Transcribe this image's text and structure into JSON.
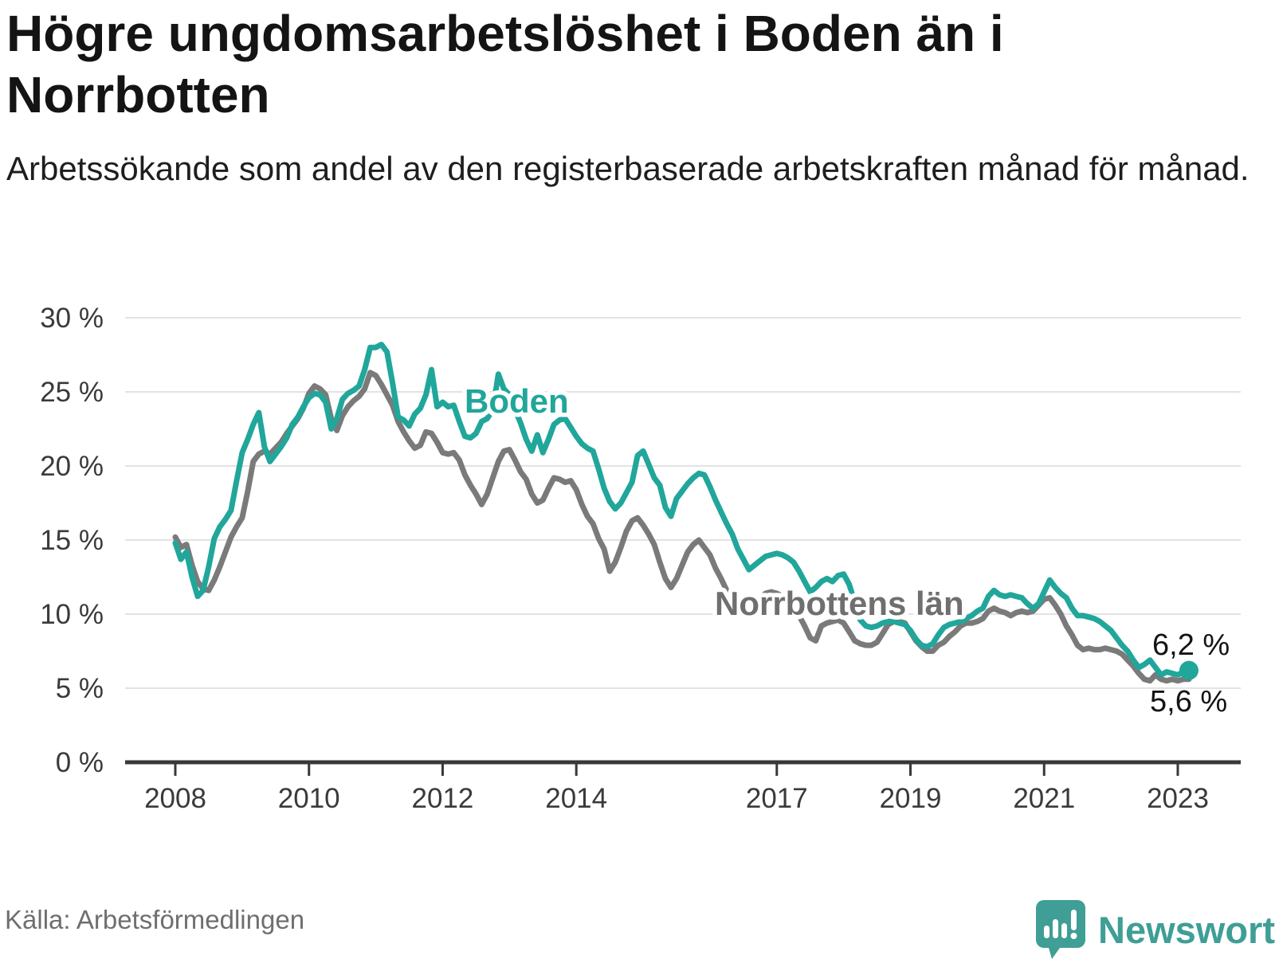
{
  "header": {
    "title": "Högre ungdomsarbetslöshet i Boden än i Norrbotten",
    "subtitle": "Arbetssökande som andel av den registerbaserade arbetskraften månad för månad."
  },
  "chart_data": {
    "type": "line",
    "title": "Högre ungdomsarbetslöshet i Boden än i Norrbotten",
    "subtitle": "Arbetssökande som andel av den registerbaserade arbetskraften månad för månad.",
    "x_unit": "month",
    "frequency": "monthly",
    "x_range": [
      "2008-01",
      "2023-03"
    ],
    "ylim": [
      0,
      30
    ],
    "grid": true,
    "legend_position": "inline-labels",
    "y_tick_labels": [
      "0 %",
      "5 %",
      "10 %",
      "15 %",
      "20 %",
      "25 %",
      "30 %"
    ],
    "x_tick_labels": [
      "2008",
      "2010",
      "2012",
      "2014",
      "2017",
      "2019",
      "2021",
      "2023"
    ],
    "x_tick_month_offsets": [
      0,
      24,
      48,
      72,
      108,
      132,
      156,
      180
    ],
    "series": [
      {
        "name": "Norrbottens län",
        "color": "#7a7a7a",
        "label_color": "#6f6f6f",
        "end_label": "5,6 %",
        "end_dot": false,
        "values": [
          15.2,
          14.5,
          14.7,
          13.3,
          12.2,
          11.7,
          11.6,
          12.3,
          13.2,
          14.2,
          15.2,
          15.9,
          16.5,
          18.3,
          20.3,
          20.8,
          21.0,
          20.8,
          21.2,
          21.6,
          22.2,
          22.7,
          23.2,
          23.9,
          24.9,
          25.4,
          25.2,
          24.8,
          23.2,
          22.4,
          23.4,
          24.0,
          24.4,
          24.7,
          25.2,
          26.3,
          26.1,
          25.5,
          24.8,
          24.1,
          23.0,
          22.3,
          21.7,
          21.2,
          21.4,
          22.3,
          22.2,
          21.6,
          20.9,
          20.8,
          20.9,
          20.4,
          19.4,
          18.7,
          18.1,
          17.4,
          18.1,
          19.2,
          20.3,
          21.0,
          21.1,
          20.4,
          19.6,
          19.1,
          18.1,
          17.5,
          17.7,
          18.5,
          19.2,
          19.1,
          18.9,
          19.0,
          18.4,
          17.4,
          16.6,
          16.1,
          15.1,
          14.4,
          12.9,
          13.5,
          14.5,
          15.6,
          16.3,
          16.5,
          16.0,
          15.4,
          14.7,
          13.5,
          12.4,
          11.8,
          12.4,
          13.3,
          14.2,
          14.7,
          15.0,
          14.5,
          14.0,
          13.1,
          12.4,
          11.6,
          10.8,
          10.3,
          10.1,
          10.3,
          10.8,
          11.1,
          11.4,
          11.5,
          11.4,
          11.2,
          10.9,
          10.3,
          9.9,
          9.2,
          8.4,
          8.2,
          9.2,
          9.4,
          9.5,
          9.6,
          9.4,
          8.8,
          8.2,
          8.0,
          7.9,
          7.9,
          8.1,
          8.7,
          9.3,
          9.5,
          9.5,
          9.4,
          8.8,
          8.2,
          7.8,
          7.5,
          7.5,
          7.9,
          8.1,
          8.5,
          8.8,
          9.2,
          9.4,
          9.4,
          9.5,
          9.7,
          10.2,
          10.4,
          10.2,
          10.1,
          9.9,
          10.1,
          10.2,
          10.1,
          10.2,
          10.6,
          11.0,
          11.1,
          10.6,
          10.0,
          9.2,
          8.6,
          7.9,
          7.6,
          7.7,
          7.6,
          7.6,
          7.7,
          7.6,
          7.5,
          7.3,
          6.9,
          6.5,
          6.0,
          5.6,
          5.5,
          5.9,
          5.6,
          5.5,
          5.6,
          5.5,
          5.6,
          5.6
        ]
      },
      {
        "name": "Boden",
        "color": "#21a69b",
        "label_color": "#21a69b",
        "end_label": "6,2 %",
        "end_dot": true,
        "values": [
          14.8,
          13.7,
          14.2,
          12.5,
          11.2,
          11.6,
          13.2,
          15.1,
          15.9,
          16.4,
          17.0,
          19.0,
          20.9,
          21.8,
          22.8,
          23.6,
          21.3,
          20.3,
          20.8,
          21.3,
          21.9,
          22.8,
          23.3,
          24.0,
          24.6,
          24.9,
          24.8,
          24.3,
          22.5,
          23.2,
          24.5,
          24.9,
          25.1,
          25.4,
          26.5,
          28.0,
          28.0,
          28.2,
          27.7,
          25.6,
          23.3,
          23.1,
          22.7,
          23.5,
          23.9,
          24.8,
          26.5,
          24.0,
          24.3,
          24.0,
          24.1,
          23.0,
          22.0,
          21.9,
          22.2,
          23.0,
          23.2,
          23.8,
          26.2,
          25.2,
          24.8,
          23.8,
          22.9,
          21.8,
          21.0,
          22.1,
          20.9,
          21.8,
          22.8,
          23.1,
          23.2,
          22.6,
          22.0,
          21.5,
          21.2,
          21.0,
          19.8,
          18.5,
          17.6,
          17.1,
          17.5,
          18.2,
          18.9,
          20.7,
          21.0,
          20.1,
          19.2,
          18.7,
          17.2,
          16.6,
          17.8,
          18.3,
          18.8,
          19.2,
          19.5,
          19.4,
          18.6,
          17.7,
          16.9,
          16.1,
          15.4,
          14.4,
          13.7,
          13.0,
          13.3,
          13.6,
          13.9,
          14.0,
          14.1,
          14.0,
          13.8,
          13.5,
          12.9,
          12.2,
          11.5,
          11.8,
          12.2,
          12.4,
          12.2,
          12.6,
          12.7,
          12.0,
          10.8,
          9.6,
          9.2,
          9.1,
          9.2,
          9.4,
          9.5,
          9.5,
          9.4,
          9.3,
          8.9,
          8.3,
          7.9,
          7.8,
          8.0,
          8.6,
          9.1,
          9.3,
          9.4,
          9.5,
          9.7,
          9.9,
          10.2,
          10.4,
          11.2,
          11.6,
          11.3,
          11.2,
          11.3,
          11.2,
          11.1,
          10.7,
          10.4,
          10.7,
          11.5,
          12.3,
          11.8,
          11.4,
          11.1,
          10.4,
          9.9,
          9.9,
          9.8,
          9.7,
          9.5,
          9.2,
          8.9,
          8.4,
          7.9,
          7.5,
          6.9,
          6.4,
          6.6,
          6.9,
          6.4,
          5.9,
          6.1,
          6.0,
          5.9,
          6.1,
          6.2
        ]
      }
    ]
  },
  "footer": {
    "source": "Källa: Arbetsförmedlingen",
    "brand": "Newsworthy"
  }
}
